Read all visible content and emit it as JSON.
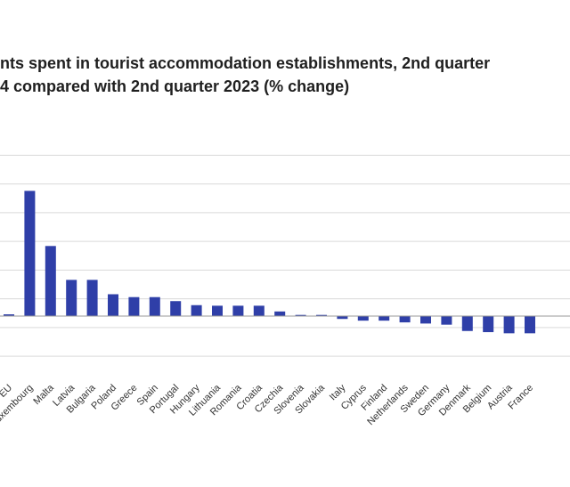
{
  "chart_data": {
    "type": "bar",
    "title_lines": [
      "nts spent in tourist accommodation establishments, 2nd quarter",
      "4 compared with 2nd quarter 2023 (% change)"
    ],
    "xlabel": "",
    "ylabel": "",
    "ylim": [
      -12,
      28
    ],
    "grid": true,
    "legend": "none",
    "bar_color": "#2f3fa8",
    "categories": [
      "EU",
      "Luxembourg",
      "Malta",
      "Latvia",
      "Bulgaria",
      "Poland",
      "Greece",
      "Spain",
      "Portugal",
      "Hungary",
      "Lithuania",
      "Romania",
      "Croatia",
      "Czechia",
      "Slovenia",
      "Slovakia",
      "Italy",
      "Cyprus",
      "Finland",
      "Netherlands",
      "Sweden",
      "Germany",
      "Denmark",
      "Belgium",
      "Austria",
      "France"
    ],
    "values": [
      0.3,
      21.8,
      12.2,
      6.3,
      6.3,
      3.8,
      3.3,
      3.3,
      2.6,
      1.9,
      1.8,
      1.8,
      1.8,
      0.8,
      0.2,
      0.2,
      -0.5,
      -0.8,
      -0.8,
      -1.1,
      -1.3,
      -1.5,
      -2.6,
      -2.8,
      -3.0,
      -3.0
    ]
  }
}
